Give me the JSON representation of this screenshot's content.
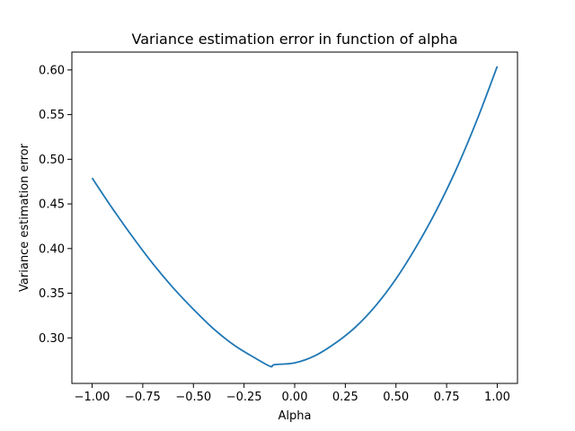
{
  "chart_data": {
    "type": "line",
    "title": "Variance estimation error in function of alpha",
    "xlabel": "Alpha",
    "ylabel": "Variance estimation error",
    "xlim": [
      -1.1,
      1.1
    ],
    "ylim": [
      0.249,
      0.62
    ],
    "xticks": [
      -1.0,
      -0.75,
      -0.5,
      -0.25,
      0.0,
      0.25,
      0.5,
      0.75,
      1.0
    ],
    "xtick_labels": [
      "−1.00",
      "−0.75",
      "−0.50",
      "−0.25",
      "0.00",
      "0.25",
      "0.50",
      "0.75",
      "1.00"
    ],
    "yticks": [
      0.3,
      0.35,
      0.4,
      0.45,
      0.5,
      0.55,
      0.6
    ],
    "ytick_labels": [
      "0.30",
      "0.35",
      "0.40",
      "0.45",
      "0.50",
      "0.55",
      "0.60"
    ],
    "grid": false,
    "series": [
      {
        "color": "#1f77b4",
        "x": [
          -1.0,
          -0.9,
          -0.8,
          -0.7,
          -0.6,
          -0.5,
          -0.4,
          -0.3,
          -0.2,
          -0.1,
          -0.12,
          0.0,
          0.1,
          0.2,
          0.3,
          0.4,
          0.5,
          0.6,
          0.7,
          0.8,
          0.9,
          1.0
        ],
        "y": [
          0.479,
          0.445,
          0.413,
          0.383,
          0.356,
          0.332,
          0.31,
          0.292,
          0.278,
          0.27,
          0.268,
          0.272,
          0.28,
          0.294,
          0.312,
          0.336,
          0.366,
          0.402,
          0.443,
          0.49,
          0.544,
          0.604
        ]
      }
    ]
  }
}
